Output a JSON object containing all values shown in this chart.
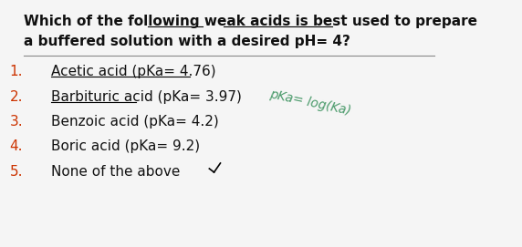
{
  "background_color": "#f5f5f5",
  "title_line1": "Which of the following weak acids is best used to prepare",
  "title_line2": "a buffered solution with a desired pH= 4?",
  "options": [
    {
      "num": "1.",
      "text": "Acetic acid (pKa= 4.76)",
      "underline": true
    },
    {
      "num": "2.",
      "text": "Barbituric acid (pKa= 3.97)",
      "underline": true
    },
    {
      "num": "3.",
      "text": "Benzoic acid (pKa= 4.2)",
      "underline": false
    },
    {
      "num": "4.",
      "text": "Boric acid (pKa= 9.2)",
      "underline": false
    },
    {
      "num": "5.",
      "text": "None of the above",
      "underline": false
    }
  ],
  "num_color": "#cc3300",
  "text_color": "#111111",
  "title_color": "#111111",
  "handwritten_note": "pKa= log(Ka)",
  "handwritten_color": "#4a9a6a",
  "title_fontsize": 11.0,
  "option_fontsize": 11.0,
  "num_fontsize": 11.0,
  "sep_line_color": "#888888"
}
